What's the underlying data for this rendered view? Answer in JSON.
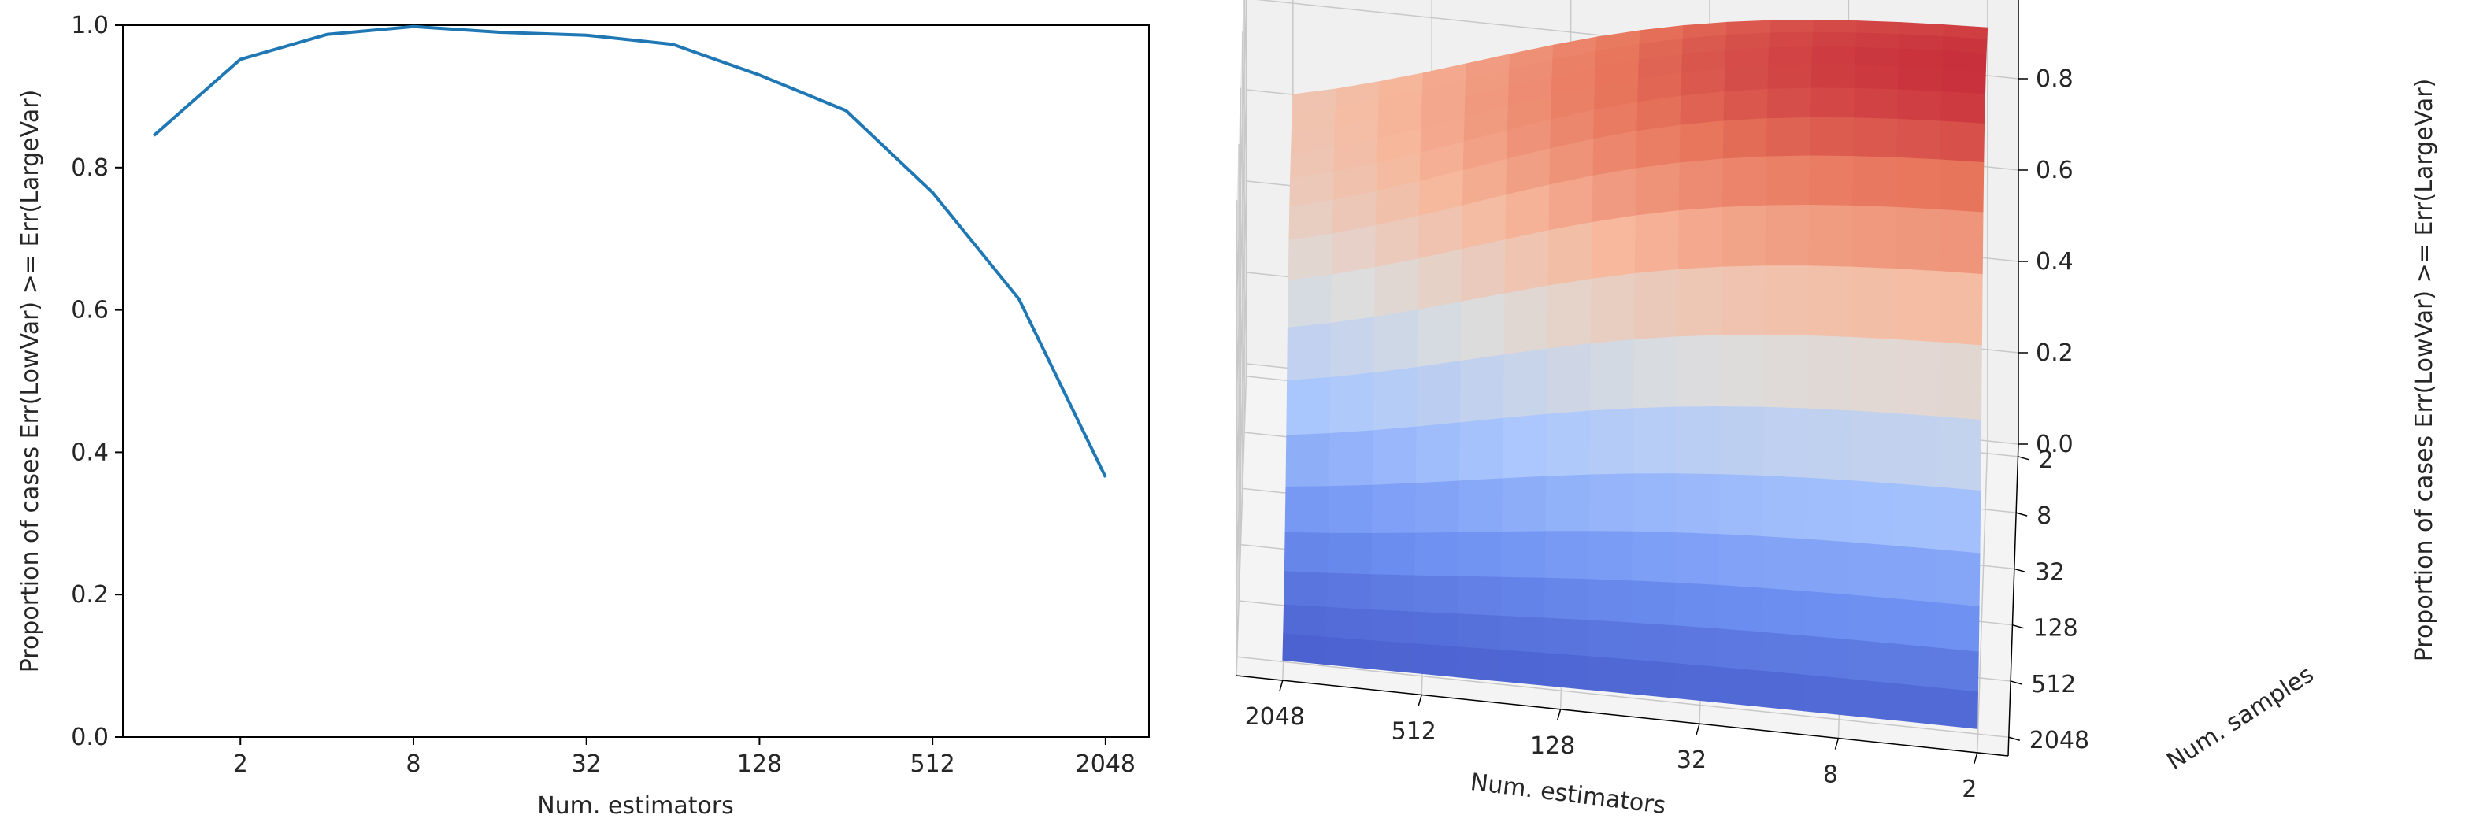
{
  "chart_data": [
    {
      "type": "line",
      "xlabel": "Num. estimators",
      "ylabel": "Proportion of cases Err(LowVar) >= Err(LargeVar)",
      "xscale": "log2",
      "x_tick_labels": [
        "2",
        "8",
        "32",
        "128",
        "512",
        "2048"
      ],
      "x_tick_values": [
        2,
        8,
        32,
        128,
        512,
        2048
      ],
      "y_tick_labels": [
        "0.0",
        "0.2",
        "0.4",
        "0.6",
        "0.8",
        "1.0"
      ],
      "y_tick_values": [
        0,
        0.2,
        0.4,
        0.6,
        0.8,
        1.0
      ],
      "xlim": [
        0.78,
        2900
      ],
      "ylim": [
        0,
        1.0
      ],
      "grid": false,
      "line_color": "#1f77b4",
      "series": [
        {
          "x": [
            1,
            2,
            4,
            8,
            16,
            32,
            64,
            128,
            256,
            512,
            1024,
            2048
          ],
          "values": [
            0.845,
            0.952,
            0.987,
            0.998,
            0.99,
            0.986,
            0.973,
            0.93,
            0.88,
            0.765,
            0.615,
            0.365
          ]
        }
      ]
    },
    {
      "type": "surface",
      "xlabel": "Num. estimators",
      "ylabel": "Num. samples",
      "zlabel": "Proportion of cases Err(LowVar) >= Err(LargeVar)",
      "x_tick_labels": [
        "2048",
        "512",
        "128",
        "32",
        "8",
        "2"
      ],
      "y_tick_labels": [
        "2048",
        "512",
        "128",
        "32",
        "8",
        "2"
      ],
      "z_tick_labels": [
        "0.0",
        "0.2",
        "0.4",
        "0.6",
        "0.8"
      ],
      "z_tick_values": [
        0,
        0.2,
        0.4,
        0.6,
        0.8
      ],
      "zlim": [
        0,
        1.0
      ],
      "colormap": "coolwarm",
      "colormap_colors": [
        "#3b4cc0",
        "#6f92f3",
        "#aac7fd",
        "#dddddd",
        "#f7b89c",
        "#e7745b",
        "#b40426"
      ],
      "grid": true,
      "pane_color": "#f2f2f2"
    }
  ]
}
